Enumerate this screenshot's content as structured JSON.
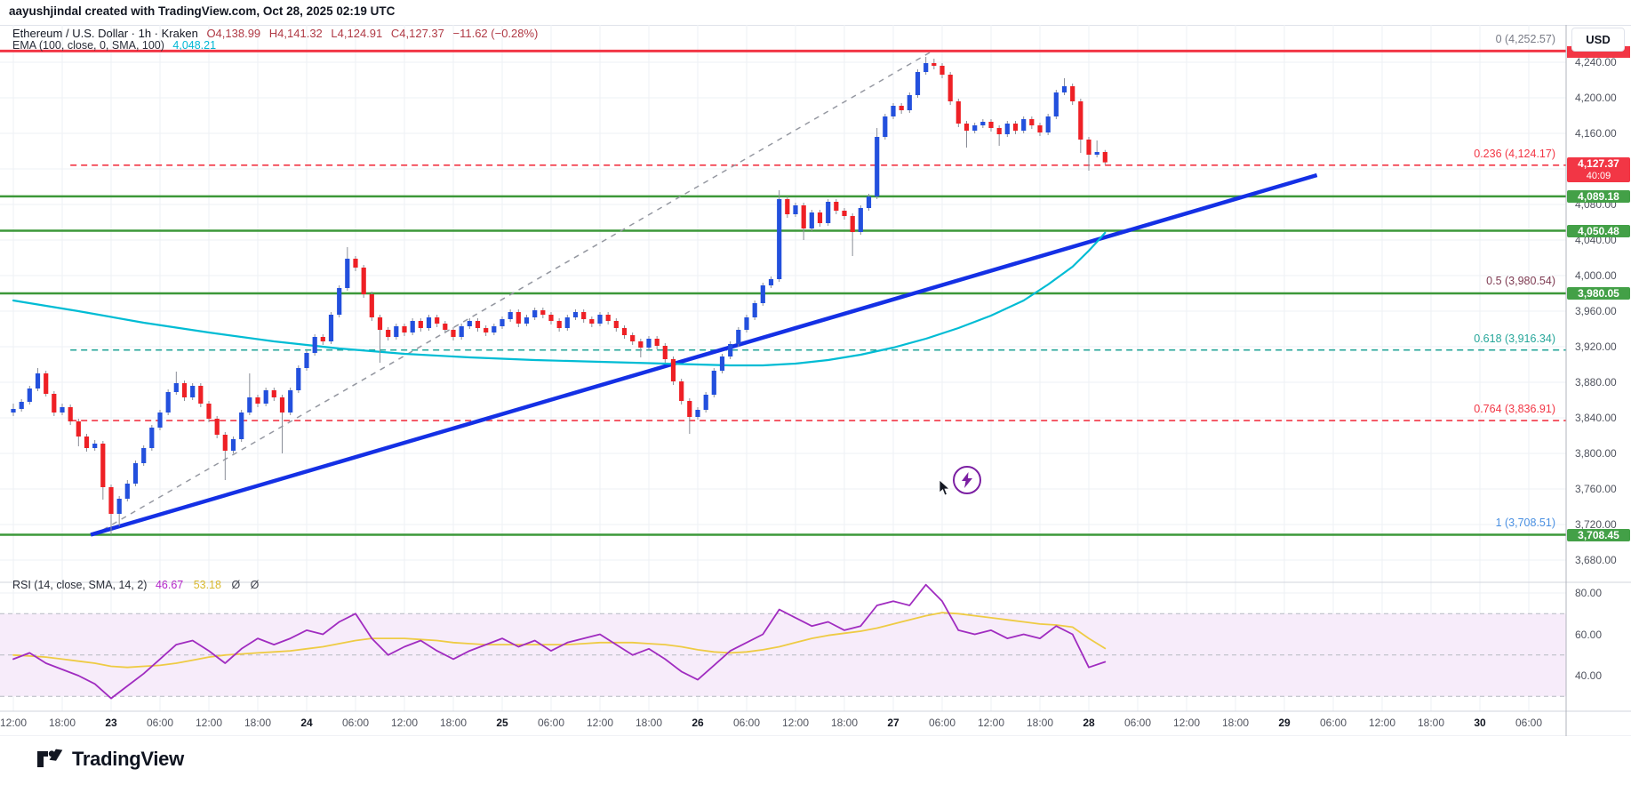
{
  "attribution": "aayushjindal created with TradingView.com, Oct 28, 2025 02:19 UTC",
  "legend": {
    "symbol": "Ethereum / U.S. Dollar · 1h · Kraken",
    "open": "O4,138.99",
    "high": "H4,141.32",
    "low": "L4,124.91",
    "close": "C4,127.37",
    "change": "−11.62 (−0.28%)"
  },
  "ema_legend": {
    "label": "EMA (100, close, 0, SMA, 100)",
    "value": "4,048.21"
  },
  "rsi_legend": {
    "label": "RSI (14, close, SMA, 14, 2)",
    "value": "46.67",
    "ma_value": "53.18",
    "suffix": "Ø Ø"
  },
  "usd_button": "USD",
  "logo_text": "TradingView",
  "colors": {
    "up": "#2350dd",
    "down": "#ee2025",
    "wick": "#8a8e98",
    "green_line": "#3c9839",
    "green_tag": "#43a047",
    "red": "#f23645",
    "teal": "#26a69a",
    "gray": "#787b86",
    "fib_half": "#7e3b52",
    "fib_one": "#4a90e2",
    "trend_blue": "#1430e5",
    "ema_cyan": "#00bcd4",
    "rsi_purple": "#a02cc0",
    "rsi_yellow": "#eecb44",
    "rsi_band": "#f7ecfa",
    "grid": "#eef0f4",
    "tag_red": "#f23645"
  },
  "price_axis": {
    "ticks": [
      {
        "label": "4,240.00",
        "value": 4240
      },
      {
        "label": "4,200.00",
        "value": 4200
      },
      {
        "label": "4,160.00",
        "value": 4160
      },
      {
        "label": "4,120.00",
        "value": 4120
      },
      {
        "label": "4,080.00",
        "value": 4080
      },
      {
        "label": "4,040.00",
        "value": 4040
      },
      {
        "label": "4,000.00",
        "value": 4000
      },
      {
        "label": "3,960.00",
        "value": 3960
      },
      {
        "label": "3,920.00",
        "value": 3920
      },
      {
        "label": "3,880.00",
        "value": 3880
      },
      {
        "label": "3,840.00",
        "value": 3840
      },
      {
        "label": "3,800.00",
        "value": 3800
      },
      {
        "label": "3,760.00",
        "value": 3760
      },
      {
        "label": "3,720.00",
        "value": 3720
      },
      {
        "label": "3,680.00",
        "value": 3680
      }
    ]
  },
  "rsi_axis": {
    "ticks": [
      {
        "label": "80.00",
        "value": 80
      },
      {
        "label": "60.00",
        "value": 60
      },
      {
        "label": "40.00",
        "value": 40
      }
    ]
  },
  "time_axis": {
    "labels": [
      {
        "text": "12:00",
        "day": false
      },
      {
        "text": "18:00",
        "day": false
      },
      {
        "text": "23",
        "day": true
      },
      {
        "text": "06:00",
        "day": false
      },
      {
        "text": "12:00",
        "day": false
      },
      {
        "text": "18:00",
        "day": false
      },
      {
        "text": "24",
        "day": true
      },
      {
        "text": "06:00",
        "day": false
      },
      {
        "text": "12:00",
        "day": false
      },
      {
        "text": "18:00",
        "day": false
      },
      {
        "text": "25",
        "day": true
      },
      {
        "text": "06:00",
        "day": false
      },
      {
        "text": "12:00",
        "day": false
      },
      {
        "text": "18:00",
        "day": false
      },
      {
        "text": "26",
        "day": true
      },
      {
        "text": "06:00",
        "day": false
      },
      {
        "text": "12:00",
        "day": false
      },
      {
        "text": "18:00",
        "day": false
      },
      {
        "text": "27",
        "day": true
      },
      {
        "text": "06:00",
        "day": false
      },
      {
        "text": "12:00",
        "day": false
      },
      {
        "text": "18:00",
        "day": false
      },
      {
        "text": "28",
        "day": true
      },
      {
        "text": "06:00",
        "day": false
      },
      {
        "text": "12:00",
        "day": false
      },
      {
        "text": "18:00",
        "day": false
      },
      {
        "text": "29",
        "day": true
      },
      {
        "text": "06:00",
        "day": false
      },
      {
        "text": "12:00",
        "day": false
      },
      {
        "text": "18:00",
        "day": false
      },
      {
        "text": "30",
        "day": true
      },
      {
        "text": "06:00",
        "day": false
      }
    ]
  },
  "fib_levels": [
    {
      "label": "0 (4,252.57)",
      "price": 4252.57,
      "color": "#787b86",
      "line": "red-solid"
    },
    {
      "label": "0.236 (4,124.17)",
      "price": 4124.17,
      "color": "#f23645",
      "line": "red-dashed"
    },
    {
      "label": "0.5 (3,980.54)",
      "price": 3980.54,
      "color": "#7e3b52",
      "line": "none"
    },
    {
      "label": "0.618 (3,916.34)",
      "price": 3916.34,
      "color": "#26a69a",
      "line": "teal-dashed"
    },
    {
      "label": "0.764 (3,836.91)",
      "price": 3836.91,
      "color": "#f23645",
      "line": "red-dashed"
    },
    {
      "label": "1 (3,708.51)",
      "price": 3708.51,
      "color": "#4a90e2",
      "line": "none"
    }
  ],
  "green_levels": [
    4089.18,
    4050.48,
    3980.05,
    3708.45
  ],
  "resistance_level": 4252.57,
  "price_tags": [
    {
      "text": "4,127.37",
      "sub": "40:09",
      "price": 4127.37,
      "kind": "red"
    },
    {
      "text": "4,089.18",
      "price": 4089.18,
      "kind": "green"
    },
    {
      "text": "4,050.48",
      "price": 4050.48,
      "kind": "green"
    },
    {
      "text": "3,980.05",
      "price": 3980.05,
      "kind": "green"
    },
    {
      "text": "3,708.45",
      "price": 3708.45,
      "kind": "green"
    }
  ],
  "chart_data": {
    "type": "candlestick",
    "title": "Ethereum / U.S. Dollar · 1h · Kraken",
    "x_start": "Oct 22 12:00",
    "x_end": "Oct 28 02:00",
    "interval_hours": 1,
    "ylim": [
      3660,
      4290
    ],
    "rsi_ylim": [
      20,
      90
    ],
    "candles": [
      [
        3846,
        3856,
        3842,
        3850
      ],
      [
        3850,
        3861,
        3847,
        3858
      ],
      [
        3858,
        3876,
        3855,
        3873
      ],
      [
        3873,
        3896,
        3870,
        3890
      ],
      [
        3890,
        3893,
        3864,
        3867
      ],
      [
        3867,
        3870,
        3842,
        3846
      ],
      [
        3846,
        3856,
        3843,
        3852
      ],
      [
        3852,
        3855,
        3832,
        3836
      ],
      [
        3836,
        3839,
        3808,
        3819
      ],
      [
        3819,
        3822,
        3802,
        3806
      ],
      [
        3806,
        3815,
        3803,
        3811
      ],
      [
        3811,
        3814,
        3748,
        3762
      ],
      [
        3762,
        3765,
        3708.5,
        3732
      ],
      [
        3732,
        3752,
        3718,
        3749
      ],
      [
        3749,
        3770,
        3746,
        3766
      ],
      [
        3766,
        3792,
        3763,
        3789
      ],
      [
        3789,
        3809,
        3786,
        3806
      ],
      [
        3806,
        3832,
        3803,
        3829
      ],
      [
        3829,
        3849,
        3826,
        3846
      ],
      [
        3846,
        3872,
        3843,
        3869
      ],
      [
        3869,
        3892,
        3866,
        3879
      ],
      [
        3879,
        3882,
        3859,
        3863
      ],
      [
        3863,
        3879,
        3860,
        3876
      ],
      [
        3876,
        3879,
        3852,
        3856
      ],
      [
        3856,
        3859,
        3835,
        3839
      ],
      [
        3839,
        3842,
        3817,
        3821
      ],
      [
        3821,
        3824,
        3770,
        3803
      ],
      [
        3803,
        3819,
        3800,
        3816
      ],
      [
        3816,
        3849,
        3813,
        3846
      ],
      [
        3846,
        3890,
        3843,
        3863
      ],
      [
        3863,
        3866,
        3852,
        3856
      ],
      [
        3856,
        3874,
        3853,
        3871
      ],
      [
        3871,
        3874,
        3859,
        3863
      ],
      [
        3863,
        3866,
        3800,
        3846
      ],
      [
        3846,
        3874,
        3843,
        3871
      ],
      [
        3871,
        3899,
        3868,
        3896
      ],
      [
        3896,
        3916,
        3893,
        3913
      ],
      [
        3913,
        3934,
        3910,
        3931
      ],
      [
        3931,
        3934,
        3922,
        3926
      ],
      [
        3926,
        3959,
        3923,
        3956
      ],
      [
        3956,
        3989,
        3953,
        3986
      ],
      [
        3986,
        4032,
        3983,
        4019
      ],
      [
        4019,
        4022,
        4005,
        4009
      ],
      [
        4009,
        4012,
        3975,
        3979
      ],
      [
        3979,
        3982,
        3949,
        3953
      ],
      [
        3953,
        3956,
        3902,
        3939
      ],
      [
        3939,
        3942,
        3927,
        3931
      ],
      [
        3931,
        3946,
        3928,
        3943
      ],
      [
        3943,
        3946,
        3932,
        3936
      ],
      [
        3936,
        3952,
        3933,
        3949
      ],
      [
        3949,
        3952,
        3937,
        3941
      ],
      [
        3941,
        3956,
        3938,
        3953
      ],
      [
        3953,
        3956,
        3942,
        3946
      ],
      [
        3946,
        3949,
        3935,
        3939
      ],
      [
        3939,
        3942,
        3927,
        3931
      ],
      [
        3931,
        3946,
        3928,
        3943
      ],
      [
        3943,
        3952,
        3940,
        3949
      ],
      [
        3949,
        3952,
        3937,
        3941
      ],
      [
        3941,
        3944,
        3932,
        3936
      ],
      [
        3936,
        3946,
        3933,
        3943
      ],
      [
        3943,
        3954,
        3940,
        3951
      ],
      [
        3951,
        3962,
        3948,
        3959
      ],
      [
        3959,
        3962,
        3942,
        3946
      ],
      [
        3946,
        3956,
        3943,
        3953
      ],
      [
        3953,
        3964,
        3950,
        3961
      ],
      [
        3961,
        3964,
        3952,
        3956
      ],
      [
        3956,
        3959,
        3945,
        3949
      ],
      [
        3949,
        3952,
        3937,
        3941
      ],
      [
        3941,
        3956,
        3938,
        3953
      ],
      [
        3953,
        3962,
        3950,
        3959
      ],
      [
        3959,
        3962,
        3947,
        3951
      ],
      [
        3951,
        3954,
        3942,
        3946
      ],
      [
        3946,
        3959,
        3943,
        3956
      ],
      [
        3956,
        3959,
        3945,
        3949
      ],
      [
        3949,
        3952,
        3937,
        3941
      ],
      [
        3941,
        3944,
        3929,
        3933
      ],
      [
        3933,
        3936,
        3922,
        3926
      ],
      [
        3926,
        3929,
        3908,
        3919
      ],
      [
        3919,
        3932,
        3916,
        3929
      ],
      [
        3929,
        3932,
        3917,
        3921
      ],
      [
        3921,
        3924,
        3902,
        3906
      ],
      [
        3906,
        3909,
        3877,
        3881
      ],
      [
        3881,
        3884,
        3855,
        3859
      ],
      [
        3859,
        3862,
        3822,
        3841
      ],
      [
        3841,
        3852,
        3838,
        3849
      ],
      [
        3849,
        3869,
        3846,
        3866
      ],
      [
        3866,
        3896,
        3863,
        3893
      ],
      [
        3893,
        3912,
        3890,
        3909
      ],
      [
        3909,
        3926,
        3906,
        3923
      ],
      [
        3923,
        3942,
        3920,
        3939
      ],
      [
        3939,
        3956,
        3936,
        3953
      ],
      [
        3953,
        3972,
        3950,
        3969
      ],
      [
        3969,
        3992,
        3966,
        3989
      ],
      [
        3989,
        3999,
        3986,
        3996
      ],
      [
        3996,
        4096,
        3993,
        4086
      ],
      [
        4086,
        4089,
        4065,
        4069
      ],
      [
        4069,
        4082,
        4066,
        4079
      ],
      [
        4079,
        4082,
        4040,
        4053
      ],
      [
        4053,
        4074,
        4050,
        4071
      ],
      [
        4071,
        4074,
        4055,
        4059
      ],
      [
        4059,
        4086,
        4056,
        4083
      ],
      [
        4083,
        4086,
        4069,
        4073
      ],
      [
        4073,
        4076,
        4063,
        4067
      ],
      [
        4067,
        4070,
        4022,
        4049
      ],
      [
        4049,
        4079,
        4046,
        4076
      ],
      [
        4076,
        4092,
        4073,
        4089
      ],
      [
        4089,
        4166,
        4086,
        4156
      ],
      [
        4156,
        4182,
        4153,
        4179
      ],
      [
        4179,
        4194,
        4176,
        4191
      ],
      [
        4191,
        4194,
        4182,
        4186
      ],
      [
        4186,
        4206,
        4183,
        4203
      ],
      [
        4203,
        4232,
        4200,
        4229
      ],
      [
        4229,
        4246,
        4226,
        4239
      ],
      [
        4239,
        4244,
        4232,
        4236
      ],
      [
        4236,
        4239,
        4222,
        4226
      ],
      [
        4226,
        4229,
        4192,
        4196
      ],
      [
        4196,
        4199,
        4167,
        4171
      ],
      [
        4171,
        4174,
        4144,
        4163
      ],
      [
        4163,
        4172,
        4160,
        4169
      ],
      [
        4169,
        4176,
        4166,
        4173
      ],
      [
        4173,
        4176,
        4162,
        4166
      ],
      [
        4166,
        4169,
        4146,
        4159
      ],
      [
        4159,
        4174,
        4156,
        4171
      ],
      [
        4171,
        4174,
        4159,
        4163
      ],
      [
        4163,
        4179,
        4160,
        4176
      ],
      [
        4176,
        4179,
        4165,
        4169
      ],
      [
        4169,
        4172,
        4157,
        4161
      ],
      [
        4161,
        4182,
        4158,
        4179
      ],
      [
        4179,
        4209,
        4176,
        4206
      ],
      [
        4206,
        4222,
        4203,
        4213
      ],
      [
        4213,
        4216,
        4192,
        4196
      ],
      [
        4196,
        4199,
        4138,
        4153
      ],
      [
        4153,
        4156,
        4118,
        4136
      ],
      [
        4136,
        4152,
        4133,
        4139
      ],
      [
        4138.99,
        4141.32,
        4124.91,
        4127.37
      ]
    ],
    "ema_points": [
      [
        0,
        3972
      ],
      [
        8,
        3960
      ],
      [
        16,
        3947
      ],
      [
        24,
        3936
      ],
      [
        32,
        3926
      ],
      [
        40,
        3918
      ],
      [
        48,
        3912
      ],
      [
        56,
        3908
      ],
      [
        64,
        3905
      ],
      [
        72,
        3903
      ],
      [
        80,
        3901
      ],
      [
        84,
        3900
      ],
      [
        88,
        3899
      ],
      [
        92,
        3899
      ],
      [
        96,
        3901
      ],
      [
        100,
        3905
      ],
      [
        104,
        3911
      ],
      [
        108,
        3919
      ],
      [
        112,
        3929
      ],
      [
        116,
        3941
      ],
      [
        120,
        3955
      ],
      [
        124,
        3972
      ],
      [
        127,
        3990
      ],
      [
        130,
        4010
      ],
      [
        132,
        4028
      ],
      [
        133,
        4038
      ],
      [
        134,
        4048.21
      ]
    ],
    "trendline_blue": {
      "from_hour": 9.5,
      "from_price": 3708.5,
      "to_hour": 160,
      "to_price": 4113
    },
    "trendline_gray": {
      "from_hour": 11,
      "from_price": 3714,
      "to_hour": 112.8,
      "to_price": 4252.57
    },
    "fib_line_start_hour": 7,
    "rsi": {
      "step_hours": 2,
      "rsi": [
        48,
        51,
        46,
        43,
        40,
        36,
        29,
        35,
        41,
        48,
        55,
        57,
        52,
        46,
        53,
        58,
        55,
        58,
        62,
        60,
        66,
        70,
        58,
        50,
        54,
        57,
        52,
        48,
        52,
        55,
        58,
        54,
        57,
        52,
        56,
        58,
        60,
        55,
        50,
        53,
        48,
        42,
        38,
        45,
        52,
        56,
        60,
        72,
        68,
        64,
        66,
        62,
        64,
        74,
        76,
        74,
        84,
        76,
        62,
        60,
        62,
        58,
        60,
        58,
        64,
        60,
        44,
        46.67
      ],
      "ma": [
        50,
        49.5,
        49,
        48,
        47,
        46,
        44.5,
        44,
        44.5,
        45,
        46,
        47.5,
        49,
        50,
        50.5,
        51,
        51.5,
        52,
        53,
        54,
        55.5,
        57,
        58,
        58,
        58,
        57.5,
        57,
        56,
        55.5,
        55,
        55,
        55,
        55,
        55,
        55,
        55.5,
        56,
        56,
        56,
        55.5,
        55,
        54,
        52.5,
        51.5,
        51,
        51.5,
        52.5,
        54,
        56,
        58,
        59.5,
        60.5,
        61.5,
        63,
        65,
        67,
        69,
        70.5,
        70,
        69,
        68,
        67,
        66,
        65,
        64.5,
        63.5,
        58,
        53.18
      ],
      "band": [
        30,
        70
      ],
      "mid": 50
    }
  }
}
